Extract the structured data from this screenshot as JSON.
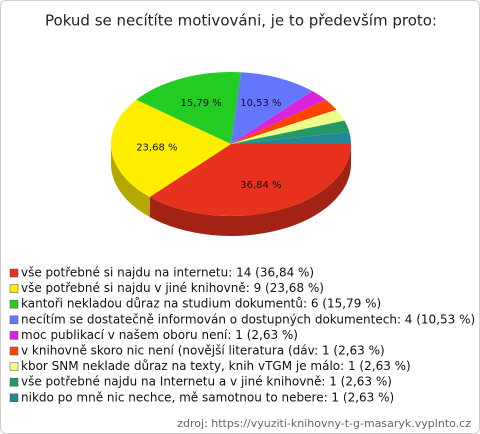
{
  "chart_data": {
    "type": "pie",
    "title": "Pokud se necítíte motivováni, je to především proto:",
    "categories": [
      "vše potřebné si najdu na internetu: 14 (36,84 %)",
      "vše potřebné si najdu v jiné knihovně: 9 (23,68 %)",
      "kantoři nekladou důraz na studium dokumentů: 6 (15,79 %)",
      "necítím se dostatečně informován o dostupných dokumentech: 4 (10,53 %)",
      "moc publikací v našem oboru není: 1 (2,63 %)",
      "v knihovně skoro nic není (novější literatura (dáv: 1 (2,63 %)",
      "kbor SNM neklade důraz na texty, knih vTGM je málo: 1 (2,63 %)",
      "vše potřebné najdu na Internetu a v jiné knihovně: 1 (2,63 %)",
      "nikdo po mně nic nechce, mě samotnou to nebere: 1 (2,63 %)"
    ],
    "values": [
      36.84,
      23.68,
      15.79,
      10.53,
      2.63,
      2.63,
      2.63,
      2.63,
      2.63
    ],
    "value_labels": [
      "36,84 %",
      "23,68 %",
      "15,79 %",
      "10,53 %",
      null,
      null,
      null,
      null,
      null
    ],
    "colors": [
      "#e8321e",
      "#ffee00",
      "#22cc22",
      "#6677ff",
      "#dd22dd",
      "#ff4400",
      "#eeff88",
      "#229966",
      "#228899"
    ],
    "source": "zdroj: https://vyuziti-knihovny-t-g-masaryk.vyplnto.cz"
  }
}
